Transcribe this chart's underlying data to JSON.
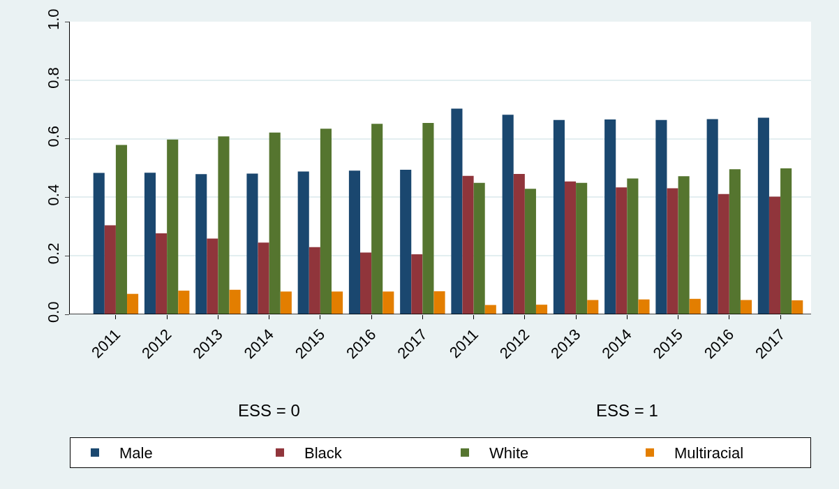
{
  "chart_data": {
    "type": "bar",
    "categories": [
      "2011",
      "2012",
      "2013",
      "2014",
      "2015",
      "2016",
      "2017",
      "2011",
      "2012",
      "2013",
      "2014",
      "2015",
      "2016",
      "2017"
    ],
    "series": [
      {
        "name": "Male",
        "color": "#1a476f",
        "values": [
          0.483,
          0.484,
          0.479,
          0.481,
          0.488,
          0.491,
          0.494,
          0.703,
          0.682,
          0.664,
          0.666,
          0.664,
          0.667,
          0.672
        ]
      },
      {
        "name": "Black",
        "color": "#90353b",
        "values": [
          0.304,
          0.277,
          0.259,
          0.245,
          0.23,
          0.211,
          0.205,
          0.473,
          0.48,
          0.454,
          0.434,
          0.431,
          0.411,
          0.402
        ]
      },
      {
        "name": "White",
        "color": "#55752f",
        "values": [
          0.579,
          0.597,
          0.608,
          0.621,
          0.634,
          0.651,
          0.654,
          0.449,
          0.429,
          0.449,
          0.464,
          0.472,
          0.496,
          0.499
        ]
      },
      {
        "name": "Multiracial",
        "color": "#e37e00",
        "values": [
          0.07,
          0.081,
          0.084,
          0.078,
          0.078,
          0.078,
          0.079,
          0.032,
          0.033,
          0.049,
          0.051,
          0.053,
          0.049,
          0.048
        ]
      }
    ],
    "annotations": [
      "ESS = 0",
      "ESS = 1"
    ],
    "ylim": [
      0,
      1
    ],
    "yticks": [
      {
        "value": 0,
        "label": "0.0"
      },
      {
        "value": 0.2,
        "label": "0.2"
      },
      {
        "value": 0.4,
        "label": "0.4"
      },
      {
        "value": 0.6,
        "label": "0.6"
      },
      {
        "value": 0.8,
        "label": "0.8"
      },
      {
        "value": 1,
        "label": "1.0"
      }
    ],
    "grid": "y",
    "legend": "bottom"
  }
}
